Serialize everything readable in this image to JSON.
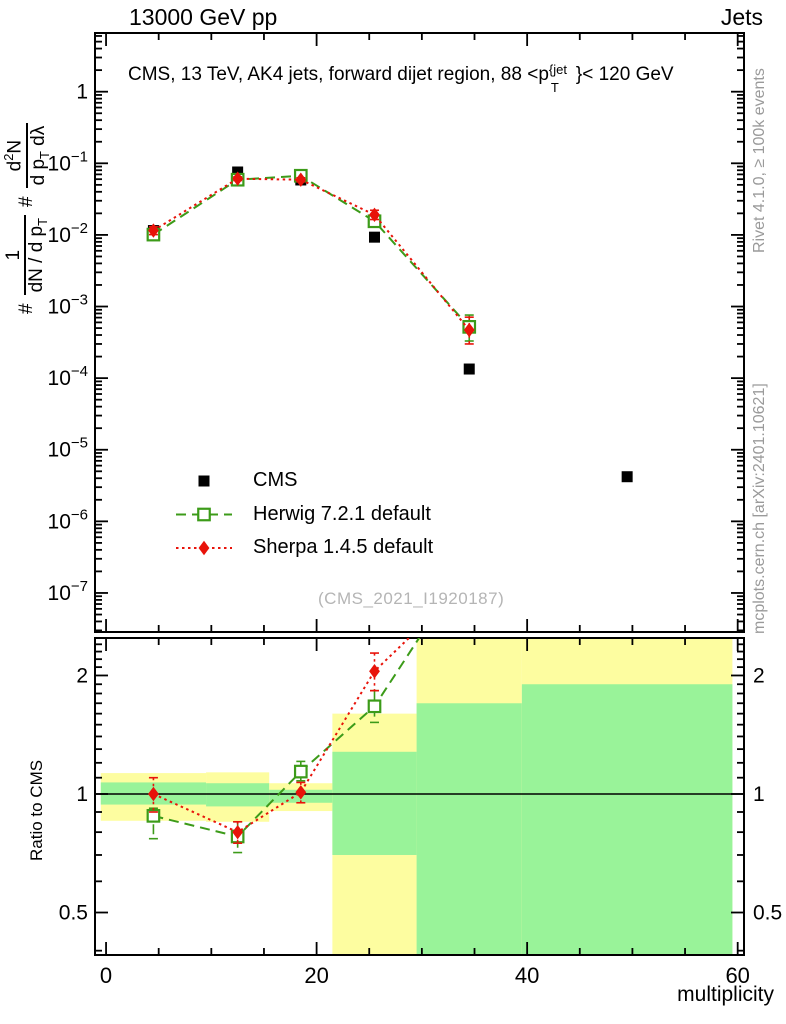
{
  "header": {
    "left": "13000 GeV pp",
    "right": "Jets"
  },
  "title": {
    "pre": "CMS, 13 TeV, AK4 jets, forward dijet region, 88 <p",
    "sup": "{jet",
    "sub": "T",
    "post": "}< 120 GeV"
  },
  "watermark": "(CMS_2021_I1920187)",
  "side_notes": {
    "rivet": "Rivet 4.1.0, ≥ 100k events",
    "mcplots": "mcplots.cern.ch [arXiv:2401.10621]"
  },
  "ylabel_main": {
    "hash1": "#",
    "frac1": {
      "num": "1",
      "den_pre": "dN / d p",
      "den_sub": "T"
    },
    "hash2": "#",
    "frac2": {
      "num_pre": "d",
      "num_sup": "2",
      "num_post": "N",
      "den_pre": "d p",
      "den_sub": "T",
      "den_post": " dλ"
    }
  },
  "labels": {
    "xlabel": "multiplicity",
    "ratio_ylabel": "Ratio to CMS"
  },
  "colors": {
    "cms": "#000000",
    "herwig": "#3c9b19",
    "sherpa": "#e8130a",
    "band_yellow": "#fdfda0",
    "band_green": "#99f399",
    "frame": "#000000",
    "note_gray": "#9a9a9a",
    "watermark_gray": "#b5b5b5"
  },
  "legend": {
    "items": [
      {
        "label": "CMS",
        "marker": "square",
        "color": "#000000",
        "line": "none"
      },
      {
        "label": "Herwig 7.2.1 default",
        "marker": "open-square",
        "color": "#3c9b19",
        "line": "dashed"
      },
      {
        "label": "Sherpa 1.4.5 default",
        "marker": "diamond",
        "color": "#e8130a",
        "line": "dotted"
      }
    ]
  },
  "chart_data": [
    {
      "id": "main",
      "type": "scatter",
      "ylog": true,
      "xlim": [
        -1.05,
        60.6
      ],
      "ylim": [
        2.85e-08,
        6.6
      ],
      "xticks": [
        {
          "v": 0,
          "t": "0"
        },
        {
          "v": 20,
          "t": "20"
        },
        {
          "v": 40,
          "t": "40"
        },
        {
          "v": 60,
          "t": "60"
        }
      ],
      "xminor": 5,
      "ytick_mode": "log-decades",
      "ylabels": [
        {
          "v": 1,
          "t": "1"
        },
        {
          "v": 0.1,
          "b": "10",
          "s": "−1"
        },
        {
          "v": 0.01,
          "b": "10",
          "s": "−2"
        },
        {
          "v": 0.001,
          "b": "10",
          "s": "−3"
        },
        {
          "v": 0.0001,
          "b": "10",
          "s": "−4"
        },
        {
          "v": 1e-05,
          "b": "10",
          "s": "−5"
        },
        {
          "v": 1e-06,
          "b": "10",
          "s": "−6"
        },
        {
          "v": 1e-07,
          "b": "10",
          "s": "−7"
        }
      ],
      "series": [
        {
          "name": "CMS",
          "marker": "square",
          "color": "#000000",
          "line": false,
          "x": [
            4.5,
            12.5,
            18.5,
            25.5,
            34.5,
            49.5
          ],
          "y": [
            0.0115,
            0.0756,
            0.0585,
            0.0093,
            0.000134,
            4.2e-06
          ]
        },
        {
          "name": "Herwig 7.2.1 default",
          "marker": "open-square",
          "color": "#3c9b19",
          "dash": "10 6",
          "x": [
            4.5,
            12.5,
            18.5,
            25.5,
            34.5
          ],
          "y": [
            0.0101,
            0.059,
            0.067,
            0.0155,
            0.00052
          ],
          "yerr": [
            [
              0.0089,
              0.0113
            ],
            [
              0.0555,
              0.0625
            ],
            [
              0.063,
              0.0712
            ],
            [
              0.0135,
              0.0177
            ],
            [
              0.00033,
              0.00076
            ]
          ]
        },
        {
          "name": "Sherpa 1.4.5 default",
          "marker": "diamond",
          "color": "#e8130a",
          "dash": "2.5 3.5",
          "x": [
            4.5,
            12.5,
            18.5,
            25.5,
            34.5
          ],
          "y": [
            0.0115,
            0.061,
            0.059,
            0.0191,
            0.00047
          ],
          "yerr": [
            [
              0.0101,
              0.013
            ],
            [
              0.0575,
              0.0646
            ],
            [
              0.0553,
              0.0628
            ],
            [
              0.0164,
              0.0221
            ],
            [
              0.0003,
              0.00071
            ]
          ]
        }
      ]
    },
    {
      "id": "ratio",
      "type": "ratio",
      "ylog": true,
      "xlim": [
        -1.05,
        60.6
      ],
      "ylim": [
        0.39,
        2.49
      ],
      "xticks": [
        {
          "v": 0,
          "t": "0"
        },
        {
          "v": 20,
          "t": "20"
        },
        {
          "v": 40,
          "t": "40"
        },
        {
          "v": 60,
          "t": "60"
        }
      ],
      "xminor": 5,
      "ytick_mode": "log-step",
      "ymajor": [
        0.5,
        1,
        2
      ],
      "ylabels": [
        {
          "v": 0.5,
          "t": "0.5"
        },
        {
          "v": 1,
          "t": "1"
        },
        {
          "v": 2,
          "t": "2"
        }
      ],
      "refline": 1,
      "bands": [
        {
          "bin": [
            -0.5,
            9.5
          ],
          "yellow": [
            0.855,
            1.13
          ],
          "green": [
            0.94,
            1.07
          ]
        },
        {
          "bin": [
            9.5,
            15.5
          ],
          "yellow": [
            0.85,
            1.135
          ],
          "green": [
            0.93,
            1.065
          ]
        },
        {
          "bin": [
            15.5,
            21.5
          ],
          "yellow": [
            0.905,
            1.065
          ],
          "green": [
            0.95,
            1.025
          ]
        },
        {
          "bin": [
            21.5,
            29.5
          ],
          "yellow": [
            0.39,
            1.6
          ],
          "green": [
            0.7,
            1.28
          ]
        },
        {
          "bin": [
            29.5,
            39.5
          ],
          "yellow": [
            0.39,
            2.49
          ],
          "green": [
            0.39,
            1.7
          ]
        },
        {
          "bin": [
            39.5,
            59.5
          ],
          "yellow": [
            0.39,
            2.49
          ],
          "green": [
            0.39,
            1.9
          ]
        }
      ],
      "series": [
        {
          "name": "Herwig 7.2.1 default",
          "marker": "open-square",
          "color": "#3c9b19",
          "dash": "10 6",
          "x": [
            4.5,
            12.5,
            18.5,
            25.5,
            34.5
          ],
          "y": [
            0.88,
            0.78,
            1.14,
            1.67,
            3.9
          ],
          "yerr": [
            [
              0.77,
              0.92
            ],
            [
              0.71,
              0.85
            ],
            [
              1.08,
              1.21
            ],
            [
              1.52,
              1.83
            ],
            null
          ]
        },
        {
          "name": "Sherpa 1.4.5 default",
          "marker": "diamond",
          "color": "#e8130a",
          "dash": "2.5 3.5",
          "x": [
            4.5,
            12.5,
            18.5,
            25.5,
            34.5
          ],
          "y": [
            1.0,
            0.8,
            1.01,
            2.05,
            3.5
          ],
          "yerr": [
            [
              0.9,
              1.1
            ],
            [
              0.75,
              0.85
            ],
            [
              0.95,
              1.07
            ],
            [
              1.83,
              2.28
            ],
            null
          ]
        }
      ]
    }
  ]
}
